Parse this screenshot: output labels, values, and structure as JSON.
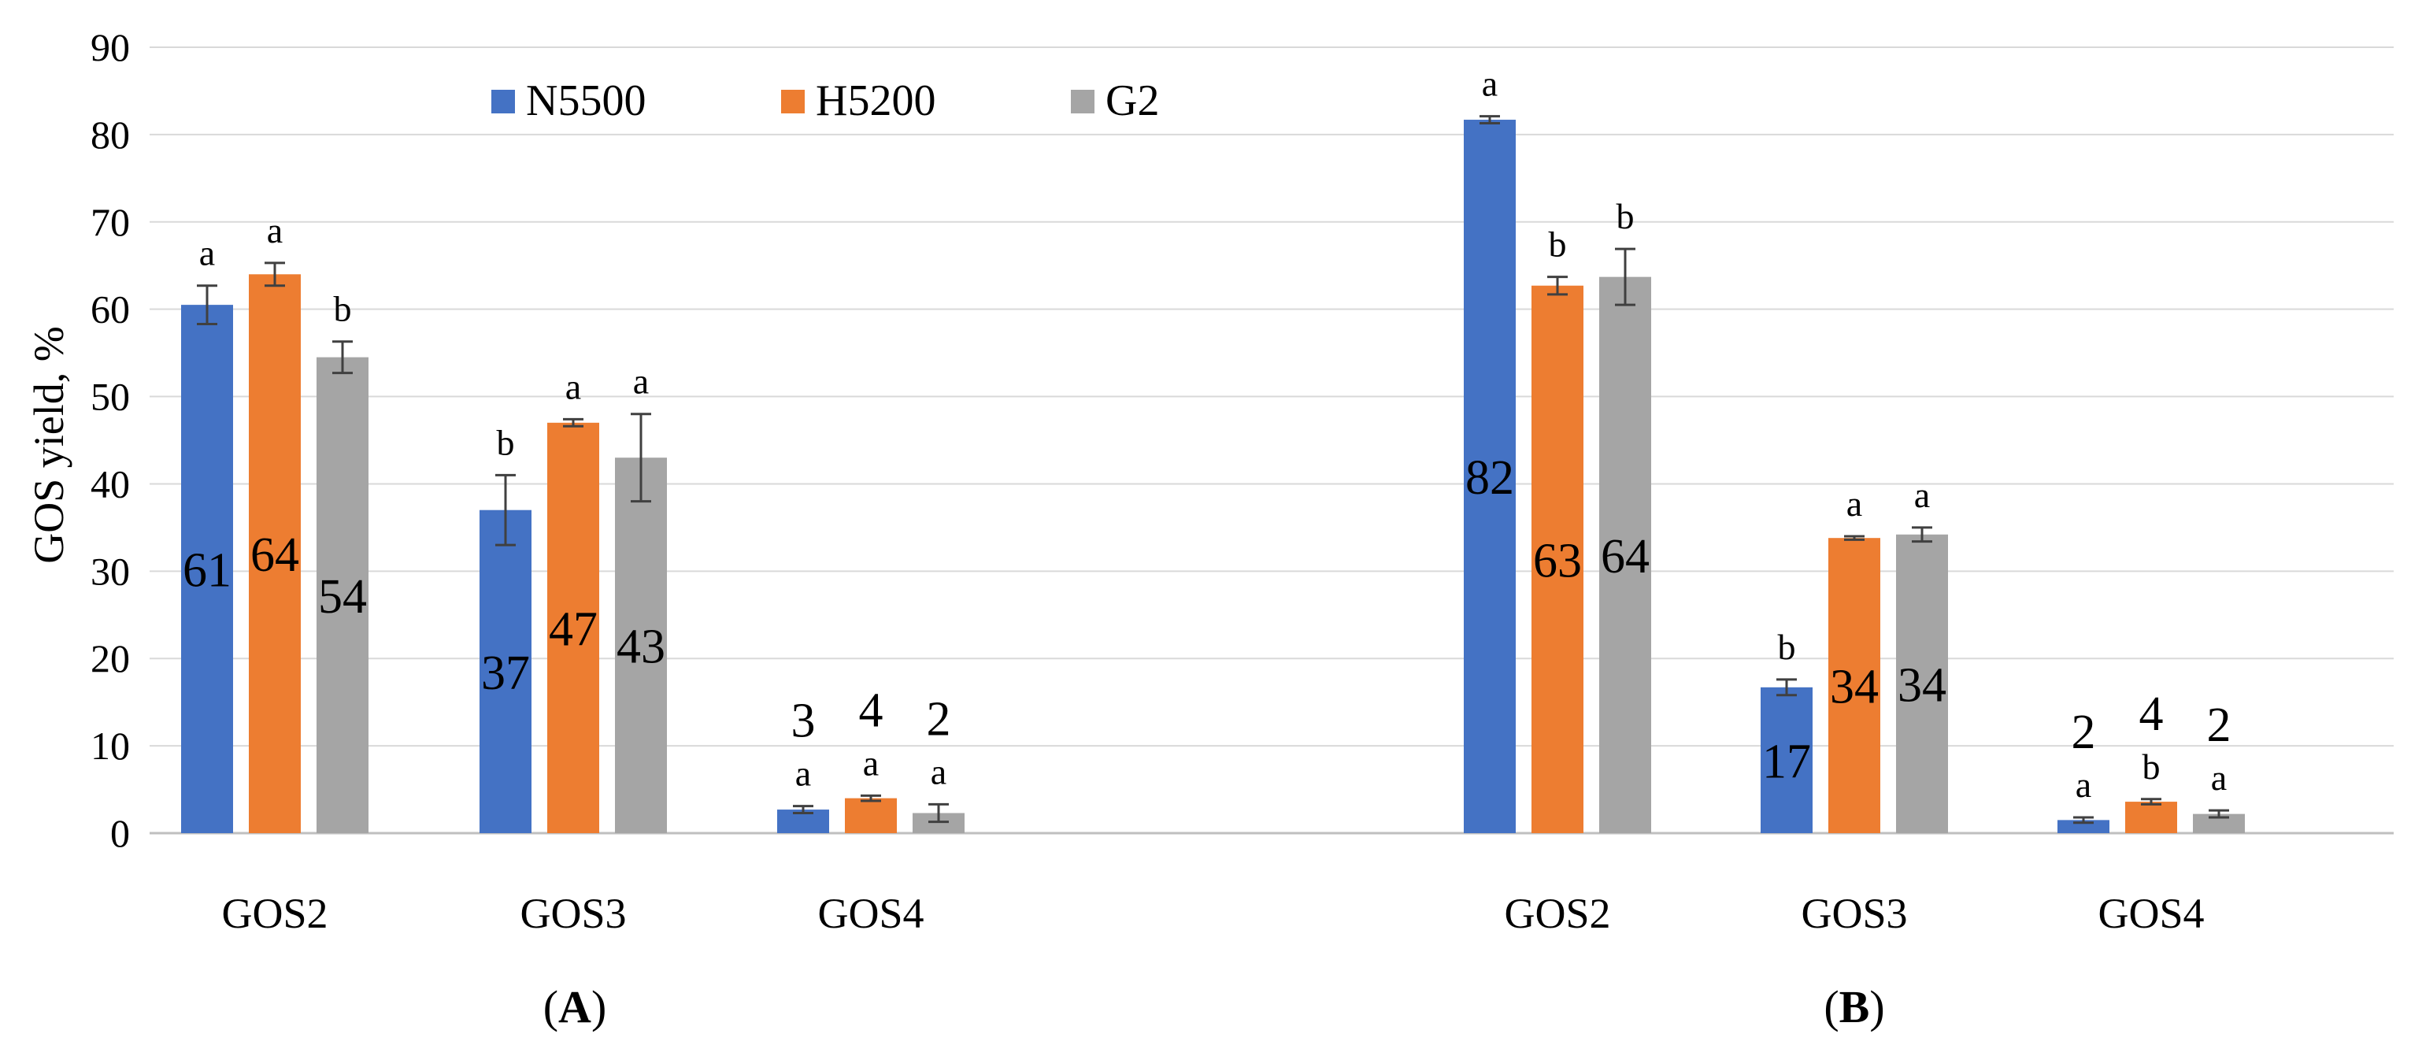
{
  "chart_data": {
    "type": "bar",
    "ylabel": "GOS yield, %",
    "ylim": [
      0,
      90
    ],
    "yticks": [
      0,
      10,
      20,
      30,
      40,
      50,
      60,
      70,
      80,
      90
    ],
    "grid": true,
    "legend_placement": "top-left",
    "colors": {
      "N5500": "#4472C4",
      "H5200": "#ED7D31",
      "G2": "#A5A5A5"
    },
    "series_names": [
      "N5500",
      "H5200",
      "G2"
    ],
    "panels": [
      {
        "label_open": "(",
        "label_letter": "A",
        "label_close": ")",
        "categories": [
          "GOS2",
          "GOS3",
          "GOS4"
        ],
        "series": [
          {
            "name": "N5500",
            "values": [
              60.5,
              37.0,
              2.7
            ],
            "errors": [
              2.2,
              4.0,
              0.4
            ],
            "value_labels": [
              "61",
              "37",
              "3"
            ],
            "letters": [
              "a",
              "b",
              "a"
            ]
          },
          {
            "name": "H5200",
            "values": [
              64.0,
              47.0,
              4.0
            ],
            "errors": [
              1.3,
              0.4,
              0.3
            ],
            "value_labels": [
              "64",
              "47",
              "4"
            ],
            "letters": [
              "a",
              "a",
              "a"
            ]
          },
          {
            "name": "G2",
            "values": [
              54.5,
              43.0,
              2.3
            ],
            "errors": [
              1.8,
              5.0,
              1.0
            ],
            "value_labels": [
              "54",
              "43",
              "2"
            ],
            "letters": [
              "b",
              "a",
              "a"
            ]
          }
        ]
      },
      {
        "label_open": "(",
        "label_letter": "B",
        "label_close": ")",
        "categories": [
          "GOS2",
          "GOS3",
          "GOS4"
        ],
        "series": [
          {
            "name": "N5500",
            "values": [
              81.7,
              16.7,
              1.5
            ],
            "errors": [
              0.4,
              0.9,
              0.3
            ],
            "value_labels": [
              "82",
              "17",
              "2"
            ],
            "letters": [
              "a",
              "b",
              "a"
            ]
          },
          {
            "name": "H5200",
            "values": [
              62.7,
              33.8,
              3.6
            ],
            "errors": [
              1.0,
              0.2,
              0.3
            ],
            "value_labels": [
              "63",
              "34",
              "4"
            ],
            "letters": [
              "b",
              "a",
              "b"
            ]
          },
          {
            "name": "G2",
            "values": [
              63.7,
              34.2,
              2.2
            ],
            "errors": [
              3.2,
              0.8,
              0.4
            ],
            "value_labels": [
              "64",
              "34",
              "2"
            ],
            "letters": [
              "b",
              "a",
              "a"
            ]
          }
        ]
      }
    ]
  }
}
